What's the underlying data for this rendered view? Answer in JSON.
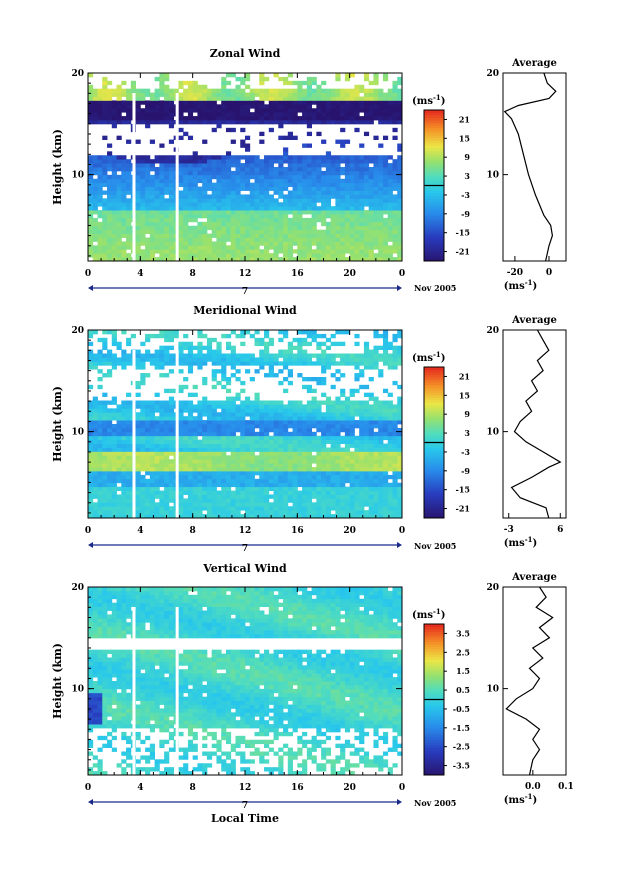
{
  "chart_data": [
    {
      "type": "heatmap",
      "title": "Zonal Wind",
      "ylabel": "Height (km)",
      "x_ticks": [
        "0",
        "4",
        "8",
        "12",
        "16",
        "20",
        "0"
      ],
      "date_label": "7",
      "date_suffix": "Nov 2005",
      "xlim": [
        0,
        24
      ],
      "ylim": [
        1.5,
        20
      ],
      "y_ticks": [
        "10",
        "20"
      ],
      "colorbar": {
        "unit_base": "(ms",
        "unit_exp": "-1",
        "unit_close": ")",
        "ticks": [
          "21",
          "15",
          "9",
          "3",
          "-3",
          "-9",
          "-15",
          "-21"
        ],
        "range": [
          -24,
          24
        ]
      },
      "profile": {
        "title": "Average",
        "x_ticks": [
          "-20",
          "0"
        ],
        "x_unit": "(ms-1)",
        "xlim": [
          -27,
          10
        ],
        "y_ticks": [
          "10",
          "20"
        ],
        "points": [
          [
            -2,
            1.5
          ],
          [
            0,
            3
          ],
          [
            2,
            4
          ],
          [
            1,
            5
          ],
          [
            -3,
            6
          ],
          [
            -8,
            8
          ],
          [
            -12,
            10
          ],
          [
            -15,
            12
          ],
          [
            -18,
            14
          ],
          [
            -22,
            15.5
          ],
          [
            -26,
            16.2
          ],
          [
            -18,
            16.8
          ],
          [
            0,
            17.5
          ],
          [
            4,
            18.2
          ],
          [
            -1,
            19
          ],
          [
            -3,
            20
          ]
        ]
      }
    },
    {
      "type": "heatmap",
      "title": "Meridional Wind",
      "ylabel": "Height (km)",
      "x_ticks": [
        "0",
        "4",
        "8",
        "12",
        "16",
        "20",
        "0"
      ],
      "date_label": "7",
      "date_suffix": "Nov 2005",
      "xlim": [
        0,
        24
      ],
      "ylim": [
        1.5,
        20
      ],
      "y_ticks": [
        "10",
        "20"
      ],
      "colorbar": {
        "unit_base": "(ms",
        "unit_exp": "-1",
        "unit_close": ")",
        "ticks": [
          "21",
          "15",
          "9",
          "3",
          "-3",
          "-9",
          "-15",
          "-21"
        ],
        "range": [
          -24,
          24
        ]
      },
      "profile": {
        "title": "Average",
        "x_ticks": [
          "-3",
          "6"
        ],
        "x_unit": "(ms-1)",
        "xlim": [
          -4,
          7
        ],
        "y_ticks": [
          "10",
          "20"
        ],
        "points": [
          [
            4,
            1.5
          ],
          [
            3.5,
            2.5
          ],
          [
            -1,
            3.5
          ],
          [
            -2.5,
            4.5
          ],
          [
            1,
            5.5
          ],
          [
            4,
            6.5
          ],
          [
            6,
            7
          ],
          [
            3,
            8
          ],
          [
            0,
            9
          ],
          [
            -2,
            10
          ],
          [
            -1,
            11
          ],
          [
            1,
            12
          ],
          [
            0,
            13
          ],
          [
            2,
            14
          ],
          [
            1,
            15
          ],
          [
            3,
            16
          ],
          [
            2,
            17
          ],
          [
            4,
            18
          ],
          [
            3,
            19
          ],
          [
            2,
            20
          ]
        ]
      }
    },
    {
      "type": "heatmap",
      "title": "Vertical Wind",
      "ylabel": "Height (km)",
      "xlabel": "Local Time",
      "x_ticks": [
        "0",
        "4",
        "8",
        "12",
        "16",
        "20",
        "0"
      ],
      "date_label": "7",
      "date_suffix": "Nov 2005",
      "xlim": [
        0,
        24
      ],
      "ylim": [
        1.5,
        20
      ],
      "y_ticks": [
        "10",
        "20"
      ],
      "colorbar": {
        "unit_base": "(ms",
        "unit_exp": "-1",
        "unit_close": ")",
        "ticks": [
          "3.5",
          "2.5",
          "1.5",
          "0.5",
          "-0.5",
          "-1.5",
          "-2.5",
          "-3.5"
        ],
        "range": [
          -4,
          4
        ]
      },
      "profile": {
        "title": "Average",
        "x_ticks": [
          "0.0",
          "0.1"
        ],
        "x_unit": "(ms-1)",
        "xlim": [
          -0.09,
          0.1
        ],
        "y_ticks": [
          "10",
          "20"
        ],
        "points": [
          [
            -0.01,
            1.5
          ],
          [
            0,
            3
          ],
          [
            0.02,
            4
          ],
          [
            0,
            5
          ],
          [
            0.02,
            6
          ],
          [
            -0.02,
            7
          ],
          [
            -0.08,
            8
          ],
          [
            -0.05,
            9
          ],
          [
            0,
            10
          ],
          [
            0.02,
            11
          ],
          [
            -0.01,
            12
          ],
          [
            0.03,
            13
          ],
          [
            0,
            14
          ],
          [
            0.05,
            15
          ],
          [
            0.02,
            16
          ],
          [
            0.06,
            17
          ],
          [
            0.01,
            18
          ],
          [
            0.04,
            19
          ],
          [
            0.02,
            20
          ]
        ]
      }
    }
  ]
}
